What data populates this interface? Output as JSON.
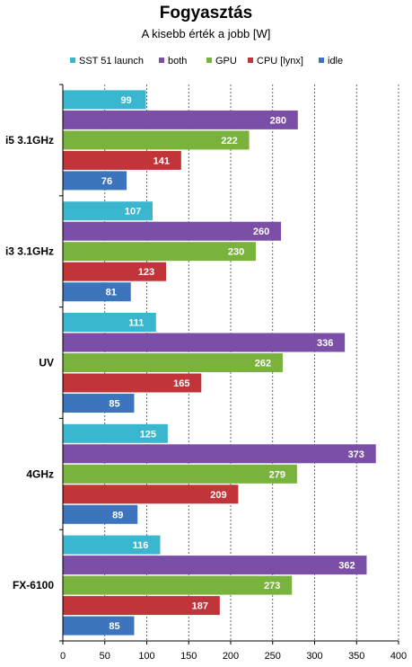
{
  "chart_data": {
    "type": "bar",
    "orientation": "horizontal",
    "title": "Fogyasztás",
    "subtitle": "A kisebb érték a jobb [W]",
    "categories": [
      "i5 3.1GHz",
      "i3 3.1GHz",
      "UV",
      "4GHz",
      "FX-6100"
    ],
    "series": [
      {
        "name": "SST 51 launch",
        "color": "#3bb6cf",
        "values": [
          99,
          107,
          111,
          125,
          116
        ]
      },
      {
        "name": "both",
        "color": "#7b4fa8",
        "values": [
          280,
          260,
          336,
          373,
          362
        ]
      },
      {
        "name": "GPU",
        "color": "#79b33d",
        "values": [
          222,
          230,
          262,
          279,
          273
        ]
      },
      {
        "name": "CPU [lynx]",
        "color": "#c1353a",
        "values": [
          141,
          123,
          165,
          209,
          187
        ]
      },
      {
        "name": "idle",
        "color": "#3c74be",
        "values": [
          76,
          81,
          85,
          89,
          85
        ]
      }
    ],
    "xlim": [
      0,
      400
    ],
    "x_ticks": [
      0,
      50,
      100,
      150,
      200,
      250,
      300,
      350,
      400
    ],
    "grid": true,
    "legend_position": "top"
  }
}
